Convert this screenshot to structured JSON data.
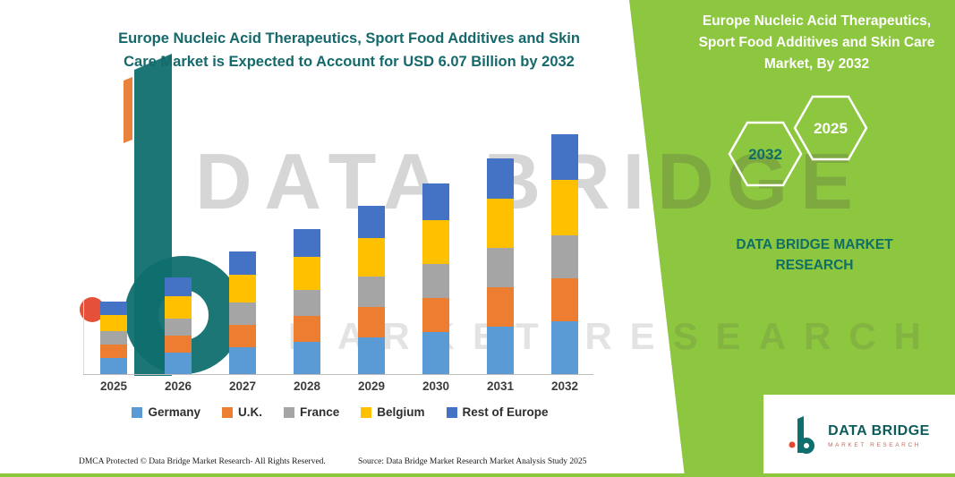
{
  "header": {
    "title_line1": "Europe Nucleic Acid Therapeutics, Sport Food Additives and Skin",
    "title_line2": "Care Market is Expected to Account for USD 6.07 Billion by 2032"
  },
  "watermark": {
    "line1": "DATA BRIDGE",
    "line2": "MARKET RESEARCH"
  },
  "side_panel": {
    "title_line1": "Europe Nucleic Acid Therapeutics,",
    "title_line2": "Sport Food Additives and Skin Care",
    "title_line3": "Market, By 2032",
    "hex_left_label": "2032",
    "hex_right_label": "2025",
    "brand_line1": "DATA BRIDGE MARKET",
    "brand_line2": "RESEARCH",
    "panel_color": "#8DC63F",
    "teal_color": "#0F6E66"
  },
  "footer_logo": {
    "brand": "DATA BRIDGE",
    "sub": "MARKET RESEARCH"
  },
  "footer": {
    "dmca": "DMCA Protected © Data Bridge Market Research-  All Rights Reserved.",
    "source": "Source: Data Bridge Market Research  Market Analysis Study 2025"
  },
  "chart_data": {
    "type": "bar",
    "stacked": true,
    "title": "Europe Nucleic Acid Therapeutics, Sport Food Additives and Skin Care Market is Expected to Account for USD 6.07 Billion by 2032",
    "unit": "USD Billion",
    "categories": [
      "2025",
      "2026",
      "2027",
      "2028",
      "2029",
      "2030",
      "2031",
      "2032"
    ],
    "series": [
      {
        "name": "Germany",
        "color": "#5B9BD5",
        "values": [
          0.4,
          0.54,
          0.68,
          0.81,
          0.94,
          1.07,
          1.21,
          1.34
        ]
      },
      {
        "name": "U.K.",
        "color": "#ED7D31",
        "values": [
          0.33,
          0.44,
          0.56,
          0.66,
          0.77,
          0.87,
          0.99,
          1.09
        ]
      },
      {
        "name": "France",
        "color": "#A5A5A5",
        "values": [
          0.33,
          0.44,
          0.56,
          0.66,
          0.77,
          0.87,
          0.99,
          1.09
        ]
      },
      {
        "name": "Belgium",
        "color": "#FFC000",
        "values": [
          0.42,
          0.56,
          0.71,
          0.85,
          0.98,
          1.12,
          1.26,
          1.4
        ]
      },
      {
        "name": "Rest of Europe",
        "color": "#4472C4",
        "values": [
          0.35,
          0.47,
          0.58,
          0.7,
          0.81,
          0.93,
          1.03,
          1.15
        ]
      }
    ],
    "totals": [
      1.83,
      2.45,
      3.09,
      3.68,
      4.27,
      4.86,
      5.48,
      6.07
    ],
    "ylim": [
      0,
      6.5
    ],
    "grid": false,
    "legend_position": "bottom"
  }
}
